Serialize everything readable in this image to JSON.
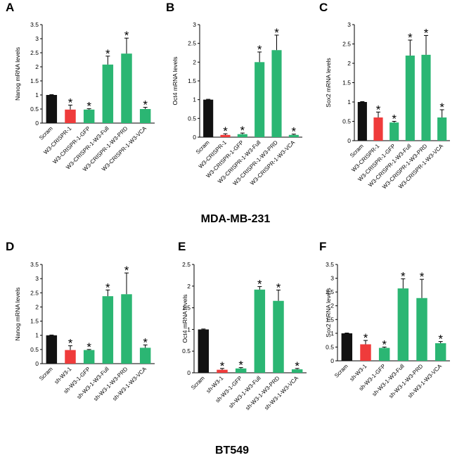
{
  "colors": {
    "black": "#111111",
    "red": "#ef3b3b",
    "green": "#2bb673"
  },
  "group_labels": {
    "top": "MDA-MB-231",
    "bottom": "BT549"
  },
  "chart_data": [
    {
      "panel": "A",
      "type": "bar",
      "ylabel": "Nanog mRNA levels",
      "ylim": [
        0,
        3.5
      ],
      "yticks": [
        "0",
        "0.5",
        "1",
        "1.5",
        "2",
        "2.5",
        "3",
        "3.5"
      ],
      "categories": [
        "Scram",
        "W3-CRISPR-1",
        "W3-CRISPR-1-GFP",
        "W3-CRISPR-1-W3-Full",
        "W3-CRISPR-1-W3-PRD",
        "W3-CRISPR-1-W3-VCA"
      ],
      "values": [
        1.0,
        0.48,
        0.48,
        2.08,
        2.47,
        0.5
      ],
      "errors": [
        0.01,
        0.16,
        0.03,
        0.3,
        0.55,
        0.06
      ],
      "colors": [
        "black",
        "red",
        "green",
        "green",
        "green",
        "green"
      ],
      "significant": [
        false,
        true,
        true,
        true,
        true,
        true
      ]
    },
    {
      "panel": "B",
      "type": "bar",
      "ylabel": "Oct4 mRNA levels",
      "ylim": [
        0,
        3
      ],
      "yticks": [
        "0",
        "0.5",
        "1",
        "1.5",
        "2",
        "2.5",
        "3"
      ],
      "categories": [
        "Scram",
        "W3-CRISPR-1",
        "W3-CRISPR-1-GFP",
        "W3-CRISPR-1-W3-Full",
        "W3-CRISPR-1-W3-PRD",
        "W3-CRISPR-1-W3-VCA"
      ],
      "values": [
        1.0,
        0.06,
        0.08,
        2.0,
        2.32,
        0.06
      ],
      "errors": [
        0.01,
        0.03,
        0.03,
        0.27,
        0.4,
        0.02
      ],
      "colors": [
        "black",
        "red",
        "green",
        "green",
        "green",
        "green"
      ],
      "significant": [
        false,
        true,
        true,
        true,
        true,
        true
      ]
    },
    {
      "panel": "C",
      "type": "bar",
      "ylabel": "Sox2 mRNA levels",
      "ylim": [
        0,
        3
      ],
      "yticks": [
        "0",
        "0.5",
        "1",
        "1.5",
        "2",
        "2.5",
        "3"
      ],
      "categories": [
        "Scram",
        "W3-CRISPR-1",
        "W3-CRISPR-1-GFP",
        "W3-CRISPR-1-W3-Full",
        "W3-CRISPR-1-W3-PRD",
        "W3-CRISPR-1-W3-VCA"
      ],
      "values": [
        1.0,
        0.6,
        0.47,
        2.2,
        2.22,
        0.6
      ],
      "errors": [
        0.01,
        0.14,
        0.03,
        0.4,
        0.5,
        0.2
      ],
      "colors": [
        "black",
        "red",
        "green",
        "green",
        "green",
        "green"
      ],
      "significant": [
        false,
        true,
        true,
        true,
        true,
        true
      ]
    },
    {
      "panel": "D",
      "type": "bar",
      "ylabel": "Nanog mRNA levels",
      "ylim": [
        0,
        3.5
      ],
      "yticks": [
        "0",
        "0.5",
        "1",
        "1.5",
        "2",
        "2.5",
        "3",
        "3.5"
      ],
      "categories": [
        "Scram",
        "sh-W3-1",
        "sh-W3-1-GFP",
        "sh-W3-1-W3-Full",
        "sh-W3-1-W3-PRD",
        "sh-W3-1-W3-VCA"
      ],
      "values": [
        1.0,
        0.48,
        0.48,
        2.38,
        2.45,
        0.56
      ],
      "errors": [
        0.01,
        0.15,
        0.02,
        0.22,
        0.75,
        0.1
      ],
      "colors": [
        "black",
        "red",
        "green",
        "green",
        "green",
        "green"
      ],
      "significant": [
        false,
        true,
        true,
        true,
        true,
        true
      ]
    },
    {
      "panel": "E",
      "type": "bar",
      "ylabel": "Oct4 mRNA levels",
      "ylim": [
        0,
        2.5
      ],
      "yticks": [
        "0",
        "0.5",
        "1",
        "1.5",
        "2",
        "2.5"
      ],
      "categories": [
        "Scram",
        "sh-W3-1",
        "sh-W3-1-GFP",
        "sh-W3-1-W3-Full",
        "sh-W3-1-W3-PRD",
        "sh-W3-1-W3-VCA"
      ],
      "values": [
        1.0,
        0.07,
        0.1,
        1.92,
        1.66,
        0.08
      ],
      "errors": [
        0.01,
        0.03,
        0.02,
        0.07,
        0.25,
        0.02
      ],
      "colors": [
        "black",
        "red",
        "green",
        "green",
        "green",
        "green"
      ],
      "significant": [
        false,
        true,
        true,
        true,
        true,
        true
      ]
    },
    {
      "panel": "F",
      "type": "bar",
      "ylabel": "Sox2 mRNA levels",
      "ylim": [
        0,
        3.5
      ],
      "yticks": [
        "0",
        "0.5",
        "1",
        "1.5",
        "2",
        "2.5",
        "3",
        "3.5"
      ],
      "categories": [
        "Scram",
        "sh-W3-1",
        "sh-W3-1-GFP",
        "sh-W3-1-W3-Full",
        "sh-W3-1-W3-PRD",
        "sh-W3-1-W3-VCA"
      ],
      "values": [
        1.0,
        0.6,
        0.47,
        2.63,
        2.28,
        0.64
      ],
      "errors": [
        0.01,
        0.14,
        0.03,
        0.35,
        0.68,
        0.06
      ],
      "colors": [
        "black",
        "red",
        "green",
        "green",
        "green",
        "green"
      ],
      "significant": [
        false,
        true,
        true,
        true,
        true,
        true
      ]
    }
  ]
}
